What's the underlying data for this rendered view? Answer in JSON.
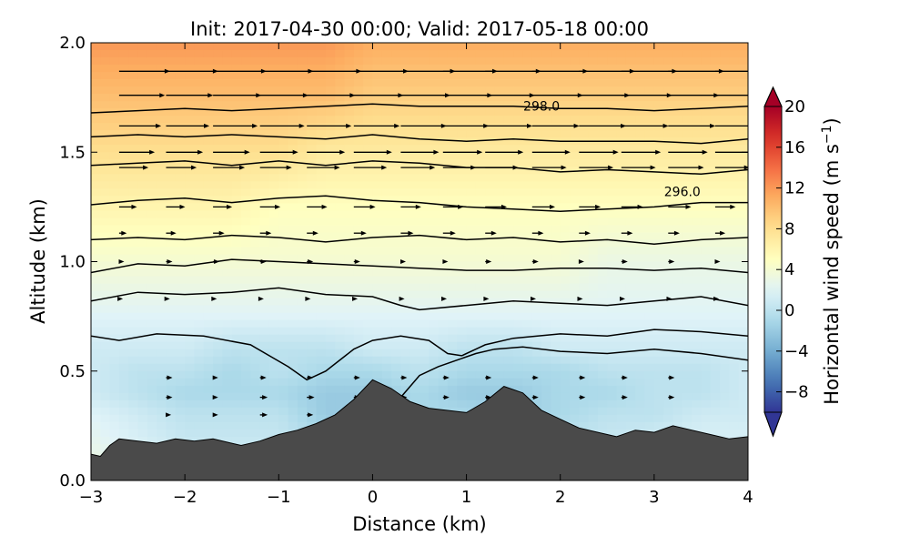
{
  "chart_data": {
    "type": "heatmap",
    "title": "Init: 2017-04-30 00:00; Valid: 2017-05-18 00:00",
    "xlabel": "Distance (km)",
    "ylabel": "Altitude (km)",
    "xlim": [
      -3,
      4
    ],
    "ylim": [
      0.0,
      2.0
    ],
    "x_ticks": [
      -3,
      -2,
      -1,
      0,
      1,
      2,
      3,
      4
    ],
    "x_tick_labels": [
      "−3",
      "−2",
      "−1",
      "0",
      "1",
      "2",
      "3",
      "4"
    ],
    "y_ticks": [
      0.0,
      0.5,
      1.0,
      1.5,
      2.0
    ],
    "y_tick_labels": [
      "0.0",
      "0.5",
      "1.0",
      "1.5",
      "2.0"
    ],
    "grid": false,
    "colorbar": {
      "label": "Horizontal wind speed (m s⁻¹)",
      "label_text": "Horizontal wind speed (m s",
      "label_sup": "−1",
      "label_close": ")",
      "range": [
        -10,
        20
      ],
      "ticks": [
        20,
        16,
        12,
        8,
        4,
        0,
        -4,
        -8
      ],
      "tick_labels": [
        "20",
        "16",
        "12",
        "8",
        "4",
        "0",
        "−4",
        "−8"
      ],
      "extend": "both",
      "colormap": [
        "#313695",
        "#4575b4",
        "#74add1",
        "#abd9e9",
        "#e0f3f8",
        "#ffffbf",
        "#fee090",
        "#fdae61",
        "#f46d43",
        "#d73027",
        "#a50026"
      ]
    },
    "terrain": {
      "color": "#4a4a4a",
      "x": [
        -3.0,
        -2.9,
        -2.8,
        -2.7,
        -2.5,
        -2.3,
        -2.1,
        -1.9,
        -1.7,
        -1.5,
        -1.4,
        -1.2,
        -1.0,
        -0.8,
        -0.6,
        -0.4,
        -0.2,
        0.0,
        0.2,
        0.4,
        0.6,
        0.8,
        1.0,
        1.2,
        1.4,
        1.6,
        1.8,
        2.0,
        2.2,
        2.4,
        2.6,
        2.8,
        3.0,
        3.2,
        3.4,
        3.6,
        3.8,
        4.0
      ],
      "y": [
        0.12,
        0.11,
        0.16,
        0.19,
        0.18,
        0.17,
        0.19,
        0.18,
        0.19,
        0.17,
        0.16,
        0.18,
        0.21,
        0.23,
        0.26,
        0.3,
        0.37,
        0.46,
        0.42,
        0.36,
        0.33,
        0.32,
        0.31,
        0.36,
        0.43,
        0.4,
        0.32,
        0.28,
        0.24,
        0.22,
        0.2,
        0.23,
        0.22,
        0.25,
        0.23,
        0.21,
        0.19,
        0.2
      ]
    },
    "speed_field": {
      "x": [
        -3,
        -2.5,
        -2,
        -1.5,
        -1,
        -0.5,
        0,
        0.5,
        1,
        1.5,
        2,
        2.5,
        3,
        3.5,
        4
      ],
      "z": [
        0.1,
        0.3,
        0.4,
        0.5,
        0.6,
        0.75,
        1.0,
        1.25,
        1.5,
        1.75,
        2.0
      ],
      "values": [
        [
          3,
          2,
          1,
          1,
          1,
          0,
          -1,
          0,
          1,
          0,
          1,
          1,
          2,
          2,
          2
        ],
        [
          2,
          1,
          0,
          0,
          0,
          -2,
          -2,
          -1,
          -1,
          -2,
          -1,
          0,
          0,
          1,
          1
        ],
        [
          1,
          0,
          -1,
          -1,
          -1,
          -2,
          -2,
          -1,
          -2,
          -2,
          -1,
          -1,
          0,
          0,
          1
        ],
        [
          1,
          0,
          0,
          -1,
          0,
          -1,
          -1,
          0,
          -1,
          -1,
          -1,
          0,
          0,
          0,
          1
        ],
        [
          1,
          1,
          1,
          0,
          0,
          0,
          1,
          1,
          0,
          0,
          1,
          1,
          1,
          1,
          1
        ],
        [
          2,
          2,
          2,
          2,
          2,
          2,
          2,
          2,
          2,
          2,
          2,
          2,
          2,
          2,
          2
        ],
        [
          4,
          4,
          4,
          4,
          4,
          4,
          4,
          4,
          4,
          4,
          4,
          3,
          3,
          3,
          3
        ],
        [
          6,
          6,
          6,
          6,
          5,
          5,
          5,
          5,
          5,
          5,
          5,
          5,
          5,
          5,
          5
        ],
        [
          8,
          8,
          8,
          8,
          8,
          7,
          7,
          7,
          7,
          7,
          7,
          7,
          7,
          7,
          7
        ],
        [
          10,
          10,
          10,
          10,
          10,
          10,
          9,
          9,
          9,
          9,
          9,
          9,
          9,
          9,
          9
        ],
        [
          12,
          12,
          12,
          12,
          12,
          12,
          11,
          11,
          11,
          11,
          11,
          11,
          11,
          11,
          11
        ]
      ]
    },
    "isentropes": {
      "color": "#000000",
      "lines": [
        {
          "x": [
            0.3,
            0.5,
            0.7,
            0.9,
            1.1,
            1.3,
            1.6,
            2.0,
            2.5,
            3.0,
            3.5,
            4.0
          ],
          "y": [
            0.38,
            0.48,
            0.52,
            0.55,
            0.58,
            0.6,
            0.61,
            0.59,
            0.58,
            0.6,
            0.58,
            0.55
          ]
        },
        {
          "x": [
            -3.0,
            -2.7,
            -2.3,
            -1.8,
            -1.3,
            -0.9,
            -0.7,
            -0.5,
            -0.2,
            0.0,
            0.3,
            0.6,
            0.8,
            0.95,
            1.2,
            1.5,
            2.0,
            2.5,
            3.0,
            3.5,
            4.0
          ],
          "y": [
            0.66,
            0.64,
            0.67,
            0.66,
            0.62,
            0.52,
            0.46,
            0.5,
            0.6,
            0.64,
            0.66,
            0.64,
            0.58,
            0.57,
            0.62,
            0.65,
            0.67,
            0.66,
            0.69,
            0.68,
            0.66
          ]
        },
        {
          "x": [
            -3.0,
            -2.5,
            -2.0,
            -1.5,
            -1.0,
            -0.5,
            0.0,
            0.3,
            0.5,
            1.0,
            1.5,
            2.0,
            2.5,
            3.0,
            3.5,
            4.0
          ],
          "y": [
            0.82,
            0.86,
            0.85,
            0.86,
            0.88,
            0.85,
            0.84,
            0.8,
            0.78,
            0.8,
            0.82,
            0.81,
            0.8,
            0.82,
            0.84,
            0.8
          ]
        },
        {
          "x": [
            -3.0,
            -2.5,
            -2.0,
            -1.5,
            -1.0,
            -0.5,
            0.0,
            0.5,
            1.0,
            1.5,
            2.0,
            2.5,
            3.0,
            3.5,
            4.0
          ],
          "y": [
            0.95,
            0.99,
            0.98,
            1.01,
            1.0,
            0.99,
            0.98,
            0.97,
            0.96,
            0.96,
            0.97,
            0.97,
            0.96,
            0.97,
            0.95
          ]
        },
        {
          "x": [
            -3.0,
            -2.5,
            -2.0,
            -1.5,
            -1.0,
            -0.5,
            0.0,
            0.5,
            1.0,
            1.5,
            2.0,
            2.5,
            3.0,
            3.5,
            4.0
          ],
          "y": [
            1.1,
            1.11,
            1.1,
            1.12,
            1.11,
            1.09,
            1.11,
            1.12,
            1.1,
            1.11,
            1.09,
            1.1,
            1.08,
            1.1,
            1.11
          ]
        },
        {
          "x": [
            -3.0,
            -2.5,
            -2.0,
            -1.5,
            -1.0,
            -0.5,
            0.0,
            0.5,
            1.0,
            1.5,
            2.0,
            2.5,
            3.0,
            3.5,
            4.0
          ],
          "y": [
            1.26,
            1.28,
            1.29,
            1.27,
            1.29,
            1.3,
            1.28,
            1.27,
            1.25,
            1.24,
            1.23,
            1.24,
            1.25,
            1.27,
            1.27
          ]
        },
        {
          "x": [
            -3.0,
            -2.5,
            -2.0,
            -1.5,
            -1.0,
            -0.5,
            0.0,
            0.5,
            1.0,
            1.5,
            2.0,
            2.5,
            3.0,
            3.5,
            4.0
          ],
          "y": [
            1.44,
            1.45,
            1.46,
            1.44,
            1.46,
            1.44,
            1.46,
            1.45,
            1.43,
            1.43,
            1.41,
            1.42,
            1.41,
            1.4,
            1.42
          ]
        },
        {
          "x": [
            -3.0,
            -2.5,
            -2.0,
            -1.5,
            -1.0,
            -0.5,
            0.0,
            0.5,
            1.0,
            1.5,
            2.0,
            2.5,
            3.0,
            3.5,
            4.0
          ],
          "y": [
            1.57,
            1.58,
            1.57,
            1.58,
            1.57,
            1.56,
            1.58,
            1.56,
            1.55,
            1.56,
            1.55,
            1.55,
            1.55,
            1.54,
            1.56
          ]
        },
        {
          "x": [
            -3.0,
            -2.5,
            -2.0,
            -1.5,
            -1.0,
            -0.5,
            0.0,
            0.5,
            1.0,
            1.5,
            2.0,
            2.5,
            3.0,
            3.5,
            4.0
          ],
          "y": [
            1.68,
            1.69,
            1.7,
            1.69,
            1.7,
            1.71,
            1.72,
            1.71,
            1.71,
            1.71,
            1.7,
            1.7,
            1.69,
            1.7,
            1.71
          ]
        }
      ]
    },
    "contour_labels": [
      {
        "text": "298.0",
        "x": 1.8,
        "y": 1.71
      },
      {
        "text": "296.0",
        "x": 3.3,
        "y": 1.32
      }
    ],
    "vector_field": {
      "color": "#000000",
      "x": [
        -3.0,
        -2.7,
        -2.2,
        -1.7,
        -1.2,
        -0.7,
        -0.2,
        0.3,
        0.75,
        1.2,
        1.7,
        2.2,
        2.65,
        3.15,
        3.65,
        4.0
      ],
      "z": [
        0.3,
        0.38,
        0.47,
        0.55,
        0.67,
        0.83,
        1.0,
        1.13,
        1.25,
        1.43,
        1.5,
        1.62,
        1.76,
        1.87
      ],
      "u": [
        [
          0.0,
          0.0,
          0.4,
          0.4,
          0.6,
          0.5,
          0.5,
          0.0,
          0.0,
          0.3,
          0.0,
          0.0,
          0.0,
          0.0,
          0.0,
          0.0
        ],
        [
          0.0,
          0.0,
          0.5,
          0.4,
          0.6,
          0.6,
          0.5,
          0.5,
          0.5,
          0.5,
          0.5,
          0.5,
          0.5,
          0.5,
          0.0,
          0.0
        ],
        [
          0.0,
          0.0,
          0.5,
          0.4,
          0.5,
          0.5,
          0.5,
          0.5,
          0.5,
          0.5,
          0.5,
          0.5,
          0.5,
          0.5,
          0.0,
          0.0
        ],
        [
          0.0,
          0.0,
          0.0,
          0.0,
          0.0,
          0.0,
          0.0,
          0.0,
          0.0,
          0.0,
          0.0,
          0.0,
          0.0,
          0.0,
          0.0,
          0.0
        ],
        [
          0.0,
          0.0,
          0.0,
          0.0,
          0.0,
          0.0,
          0.0,
          0.0,
          0.0,
          0.0,
          0.0,
          0.0,
          0.0,
          0.0,
          0.0,
          0.0
        ],
        [
          0.0,
          0.3,
          0.3,
          0.3,
          0.3,
          0.3,
          0.3,
          0.3,
          0.3,
          0.3,
          0.3,
          0.3,
          0.3,
          0.3,
          0.3,
          0.0
        ],
        [
          0.0,
          0.4,
          0.5,
          0.5,
          0.5,
          0.5,
          0.5,
          0.4,
          0.4,
          0.5,
          0.5,
          0.4,
          0.5,
          0.5,
          0.4,
          0.0
        ],
        [
          0.0,
          0.6,
          0.8,
          0.9,
          0.9,
          0.9,
          1.0,
          1.0,
          1.0,
          0.9,
          0.9,
          0.9,
          0.9,
          0.9,
          0.8,
          0.0
        ],
        [
          0.0,
          1.4,
          1.5,
          1.5,
          1.6,
          1.6,
          1.7,
          1.6,
          1.6,
          1.7,
          1.8,
          1.7,
          1.7,
          1.8,
          1.6,
          0.0
        ],
        [
          0.0,
          2.3,
          2.4,
          2.5,
          2.5,
          2.6,
          2.6,
          2.7,
          2.6,
          2.6,
          2.7,
          2.7,
          2.7,
          2.8,
          2.7,
          0.0
        ],
        [
          0.0,
          2.8,
          2.9,
          2.9,
          3.0,
          3.0,
          3.0,
          3.0,
          3.1,
          3.0,
          3.0,
          3.1,
          3.1,
          3.1,
          3.0,
          0.0
        ],
        [
          0.0,
          3.3,
          3.4,
          3.5,
          3.5,
          3.5,
          3.6,
          3.6,
          3.6,
          3.7,
          3.7,
          3.7,
          3.7,
          3.7,
          3.6,
          0.0
        ],
        [
          0.0,
          3.6,
          3.7,
          3.8,
          3.8,
          3.8,
          3.9,
          3.9,
          3.9,
          3.9,
          4.0,
          4.0,
          4.0,
          4.0,
          3.9,
          0.0
        ],
        [
          0.0,
          4.0,
          4.1,
          4.2,
          4.2,
          4.3,
          4.3,
          4.3,
          4.3,
          4.4,
          4.4,
          4.4,
          4.4,
          4.4,
          4.3,
          0.0
        ]
      ]
    }
  }
}
